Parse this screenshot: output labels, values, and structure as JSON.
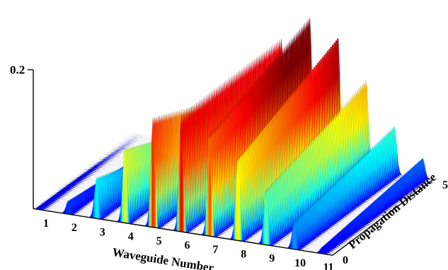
{
  "chart_data": {
    "type": "surface-3d",
    "xlabel": "Waveguide Number",
    "ylabel": "Propagation Distance",
    "zlabel": "",
    "x_ticks": [
      "1",
      "2",
      "3",
      "4",
      "5",
      "6",
      "7",
      "8",
      "9",
      "10",
      "11"
    ],
    "y_ticks": [
      "0",
      "5"
    ],
    "z_ticks": [
      "0.2"
    ],
    "xlim": [
      1,
      11
    ],
    "ylim": [
      0,
      5
    ],
    "zlim": [
      0,
      0.2
    ],
    "colormap": [
      "#00007f",
      "#0000ff",
      "#007fff",
      "#00ffff",
      "#7fff7f",
      "#ffff00",
      "#ff7f00",
      "#ff0000",
      "#7f0000"
    ],
    "z_near_end": [
      0.005,
      0.02,
      0.06,
      0.11,
      0.16,
      0.17,
      0.15,
      0.12,
      0.08,
      0.04,
      0.01
    ],
    "z_far_end": [
      0.0,
      0.0,
      0.01,
      0.04,
      0.09,
      0.17,
      0.21,
      0.19,
      0.13,
      0.07,
      0.03
    ]
  }
}
